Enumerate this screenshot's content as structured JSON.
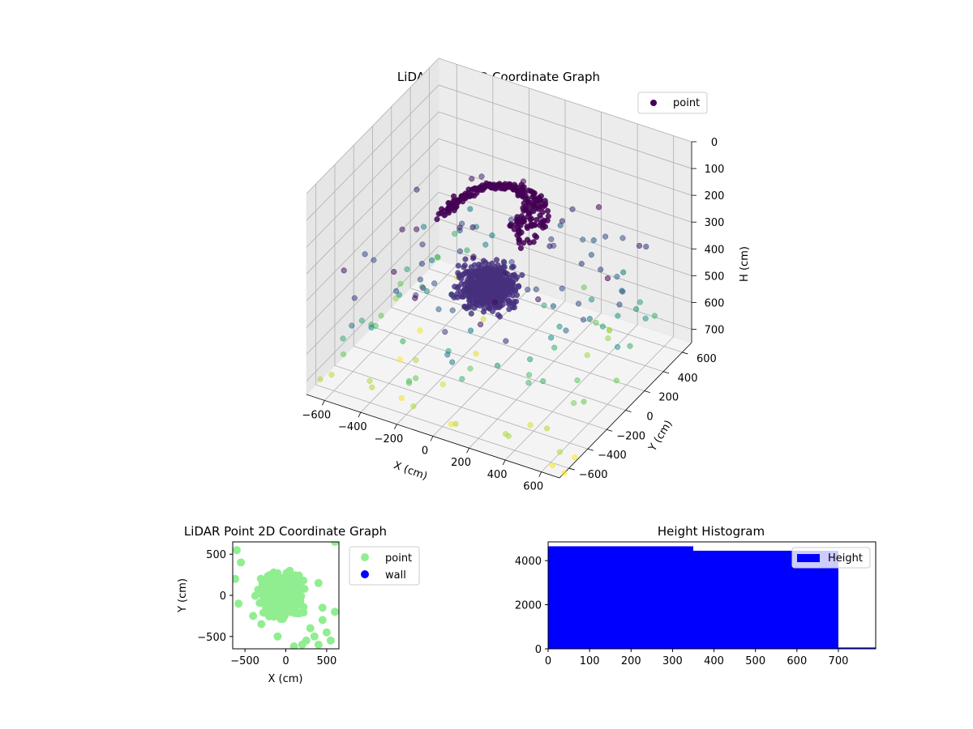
{
  "chart_data": [
    {
      "type": "scatter3d",
      "title": "LiDAR Point 3D Coordinate Graph",
      "xlabel": "X (cm)",
      "ylabel": "Y (cm)",
      "zlabel": "H (cm)",
      "xlim": [
        -700,
        700
      ],
      "ylim": [
        -700,
        700
      ],
      "zlim": [
        750,
        0
      ],
      "xticks": [
        -600,
        -400,
        -200,
        0,
        200,
        400,
        600
      ],
      "yticks": [
        -600,
        -400,
        -200,
        0,
        200,
        400,
        600
      ],
      "zticks": [
        0,
        100,
        200,
        300,
        400,
        500,
        600,
        700
      ],
      "grid": true,
      "legend_position": "upper-right",
      "colormap": "viridis",
      "legend": [
        {
          "name": "point",
          "color": "#440154"
        }
      ],
      "series": [
        {
          "name": "point",
          "clusters": [
            {
              "kind": "dome",
              "center_x": -50,
              "center_y": 0,
              "height": 100,
              "radius": 380,
              "color": "#440154"
            },
            {
              "kind": "blob",
              "center_x": -50,
              "center_y": -20,
              "height": 450,
              "radius": 220,
              "color": "#46317e"
            }
          ],
          "points": [
            {
              "x": -650,
              "y": -650,
              "h": 700
            },
            {
              "x": -600,
              "y": -500,
              "h": 650
            },
            {
              "x": -550,
              "y": -300,
              "h": 600
            },
            {
              "x": -500,
              "y": -100,
              "h": 550
            },
            {
              "x": -450,
              "y": 150,
              "h": 500
            },
            {
              "x": -400,
              "y": 350,
              "h": 450
            },
            {
              "x": -300,
              "y": 500,
              "h": 500
            },
            {
              "x": -200,
              "y": 600,
              "h": 450
            },
            {
              "x": 0,
              "y": 650,
              "h": 450
            },
            {
              "x": 200,
              "y": 620,
              "h": 450
            },
            {
              "x": 400,
              "y": 550,
              "h": 500
            },
            {
              "x": 550,
              "y": 400,
              "h": 550
            },
            {
              "x": 620,
              "y": 200,
              "h": 600
            },
            {
              "x": 650,
              "y": 0,
              "h": 650
            },
            {
              "x": 600,
              "y": -250,
              "h": 650
            },
            {
              "x": 500,
              "y": -450,
              "h": 700
            },
            {
              "x": 350,
              "y": -600,
              "h": 700
            },
            {
              "x": 100,
              "y": -650,
              "h": 700
            },
            {
              "x": -150,
              "y": -620,
              "h": 700
            },
            {
              "x": -400,
              "y": -580,
              "h": 700
            },
            {
              "x": -600,
              "y": 500,
              "h": 650
            },
            {
              "x": -650,
              "y": 200,
              "h": 650
            },
            {
              "x": 300,
              "y": 300,
              "h": 400
            },
            {
              "x": 450,
              "y": 100,
              "h": 500
            },
            {
              "x": -350,
              "y": -350,
              "h": 600
            },
            {
              "x": 200,
              "y": -400,
              "h": 550
            },
            {
              "x": -100,
              "y": 400,
              "h": 400
            },
            {
              "x": 500,
              "y": 600,
              "h": 400
            },
            {
              "x": -500,
              "y": 650,
              "h": 500
            },
            {
              "x": 650,
              "y": -600,
              "h": 700
            },
            {
              "x": 700,
              "y": -650,
              "h": 750
            },
            {
              "x": 680,
              "y": -500,
              "h": 750
            },
            {
              "x": 620,
              "y": -620,
              "h": 750
            },
            {
              "x": 300,
              "y": 0,
              "h": 450
            },
            {
              "x": -250,
              "y": 200,
              "h": 350
            },
            {
              "x": 150,
              "y": 250,
              "h": 350
            },
            {
              "x": -600,
              "y": -100,
              "h": 650
            },
            {
              "x": 400,
              "y": -300,
              "h": 600
            },
            {
              "x": -200,
              "y": -500,
              "h": 650
            },
            {
              "x": 0,
              "y": -300,
              "h": 500
            },
            {
              "x": 500,
              "y": 300,
              "h": 550
            },
            {
              "x": -400,
              "y": 0,
              "h": 550
            },
            {
              "x": 250,
              "y": 500,
              "h": 450
            },
            {
              "x": -550,
              "y": 400,
              "h": 600
            },
            {
              "x": 600,
              "y": 500,
              "h": 600
            }
          ]
        }
      ]
    },
    {
      "type": "scatter",
      "title": "LiDAR Point 2D Coordinate Graph",
      "xlabel": "X (cm)",
      "ylabel": "Y (cm)",
      "xlim": [
        -650,
        650
      ],
      "ylim": [
        -650,
        650
      ],
      "xticks": [
        -500,
        0,
        500
      ],
      "yticks": [
        -500,
        0,
        500
      ],
      "legend_position": "outside-right",
      "series": [
        {
          "name": "point",
          "color": "#90ee90",
          "cluster": {
            "center_x": -50,
            "center_y": 0,
            "radius": 380
          },
          "points": [
            {
              "x": -600,
              "y": 550
            },
            {
              "x": -550,
              "y": 400
            },
            {
              "x": -620,
              "y": 200
            },
            {
              "x": -580,
              "y": -100
            },
            {
              "x": 600,
              "y": 650
            },
            {
              "x": 400,
              "y": 150
            },
            {
              "x": 450,
              "y": -150
            },
            {
              "x": 600,
              "y": -200
            },
            {
              "x": 300,
              "y": -400
            },
            {
              "x": 500,
              "y": -450
            },
            {
              "x": 550,
              "y": -550
            },
            {
              "x": 200,
              "y": -600
            },
            {
              "x": -300,
              "y": -350
            },
            {
              "x": -400,
              "y": -250
            },
            {
              "x": 350,
              "y": -500
            },
            {
              "x": 450,
              "y": -300
            },
            {
              "x": -100,
              "y": -500
            },
            {
              "x": 100,
              "y": -620
            },
            {
              "x": 250,
              "y": -550
            },
            {
              "x": 400,
              "y": -600
            }
          ]
        },
        {
          "name": "wall",
          "color": "#0000ff",
          "points": []
        }
      ]
    },
    {
      "type": "bar",
      "title": "Height Histogram",
      "xlim": [
        0,
        790
      ],
      "ylim": [
        0,
        4850
      ],
      "xticks": [
        0,
        100,
        200,
        300,
        400,
        500,
        600,
        700
      ],
      "yticks": [
        0,
        2000,
        4000
      ],
      "legend_position": "upper-right",
      "series": [
        {
          "name": "Height",
          "color": "#0000ff",
          "bins": [
            {
              "start": 0,
              "end": 350,
              "count": 4650
            },
            {
              "start": 350,
              "end": 700,
              "count": 4450
            },
            {
              "start": 700,
              "end": 790,
              "count": 60
            }
          ]
        }
      ]
    }
  ]
}
